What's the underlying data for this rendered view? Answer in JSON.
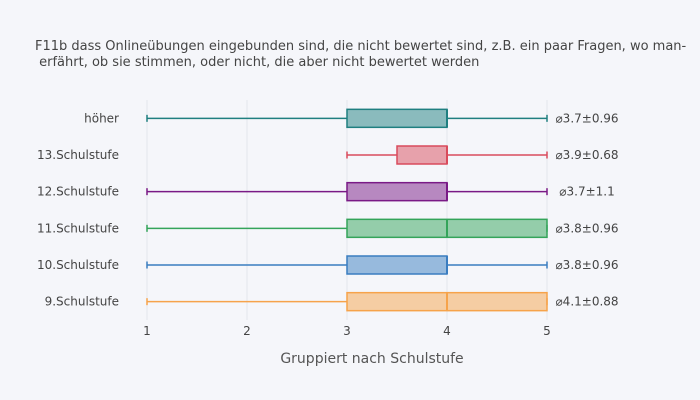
{
  "chart_data": {
    "type": "box",
    "orientation": "horizontal",
    "title_lines": [
      "F11b dass Onlineübungen eingebunden sind, die nicht bewertet sind, z.B. ein paar Fragen, wo man-",
      " erfährt, ob sie stimmen, oder nicht, die aber nicht bewertet werden"
    ],
    "xlabel": "Gruppiert nach Schulstufe",
    "xlim": [
      0.75,
      5.75
    ],
    "x_ticks": [
      1,
      2,
      3,
      4,
      5
    ],
    "grid": true,
    "categories": [
      "höher",
      "13.Schulstufe",
      "12.Schulstufe",
      "11.Schulstufe",
      "10.Schulstufe",
      "9.Schulstufe"
    ],
    "series": [
      {
        "category": "höher",
        "min": 1,
        "q1": 3,
        "median": 4,
        "q3": 4,
        "max": 5,
        "annotation": "⌀3.7±0.96",
        "color": "#1f7f80"
      },
      {
        "category": "13.Schulstufe",
        "min": 3,
        "q1": 3.5,
        "median": 4,
        "q3": 4,
        "max": 5,
        "annotation": "⌀3.9±0.68",
        "color": "#d94b5c"
      },
      {
        "category": "12.Schulstufe",
        "min": 1,
        "q1": 3,
        "median": 4,
        "q3": 4,
        "max": 5,
        "annotation": "⌀3.7±1.1",
        "color": "#7a1a86"
      },
      {
        "category": "11.Schulstufe",
        "min": 1,
        "q1": 3,
        "median": 4,
        "q3": 5,
        "max": 5,
        "annotation": "⌀3.8±0.96",
        "color": "#34a45a"
      },
      {
        "category": "10.Schulstufe",
        "min": 1,
        "q1": 3,
        "median": 4,
        "q3": 4,
        "max": 5,
        "annotation": "⌀3.8±0.96",
        "color": "#3a7dc0"
      },
      {
        "category": "9.Schulstufe",
        "min": 1,
        "q1": 3,
        "median": 4,
        "q3": 5,
        "max": 5,
        "annotation": "⌀4.1±0.88",
        "color": "#f6a34b"
      }
    ]
  }
}
